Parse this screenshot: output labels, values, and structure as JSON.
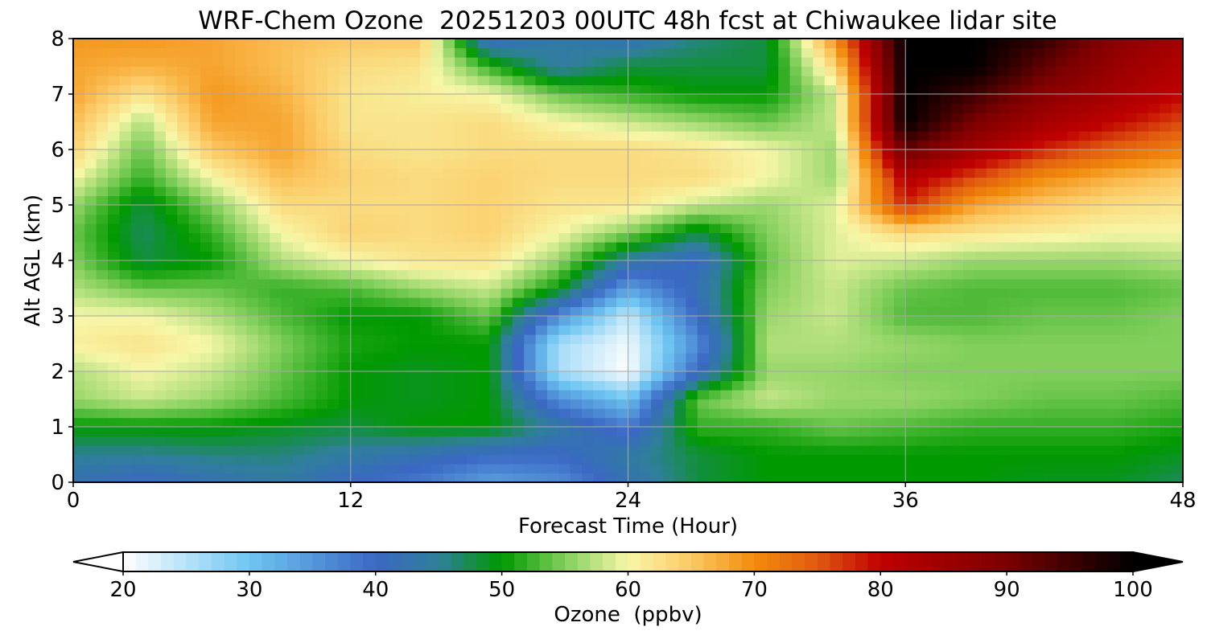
{
  "chart_data": {
    "type": "heatmap",
    "title": "WRF-Chem Ozone  20251203 00UTC 48h fcst at Chiwaukee lidar site",
    "xlabel": "Forecast Time (Hour)",
    "ylabel": "Alt AGL (km)",
    "xlim": [
      0,
      48
    ],
    "ylim": [
      0,
      8
    ],
    "x_ticks": [
      0,
      12,
      24,
      36,
      48
    ],
    "y_ticks": [
      0,
      1,
      2,
      3,
      4,
      5,
      6,
      7,
      8
    ],
    "grid": true,
    "x": [
      0,
      3,
      6,
      9,
      12,
      15,
      18,
      21,
      24,
      27,
      30,
      33,
      36,
      39,
      42,
      45,
      48
    ],
    "y": [
      0,
      0.5,
      1,
      1.5,
      2,
      2.5,
      3,
      3.5,
      4,
      4.5,
      5,
      5.5,
      6,
      6.5,
      7,
      7.5,
      8
    ],
    "z": [
      [
        42,
        40,
        42,
        44,
        40,
        38,
        34,
        36,
        42,
        48,
        50,
        50,
        50,
        50,
        49,
        49,
        47
      ],
      [
        45,
        45,
        46,
        46,
        44,
        42,
        40,
        40,
        44,
        48,
        50,
        50,
        50,
        50,
        50,
        50,
        49
      ],
      [
        50,
        50,
        50,
        49,
        48,
        50,
        50,
        44,
        38,
        52,
        52,
        54,
        53,
        52,
        52,
        52,
        51
      ],
      [
        56,
        58,
        56,
        53,
        50,
        49,
        50,
        36,
        30,
        54,
        58,
        56,
        56,
        55,
        54,
        54,
        53
      ],
      [
        57,
        60,
        58,
        54,
        50,
        49,
        50,
        26,
        20,
        40,
        56,
        56,
        55,
        55,
        55,
        55,
        55
      ],
      [
        61,
        62,
        60,
        55,
        51,
        50,
        50,
        26,
        21,
        36,
        57,
        57,
        56,
        55,
        55,
        55,
        55
      ],
      [
        60,
        60,
        57,
        53,
        50,
        50,
        54,
        36,
        24,
        40,
        56,
        58,
        53,
        53,
        54,
        54,
        55
      ],
      [
        57,
        54,
        54,
        52,
        53,
        56,
        58,
        50,
        34,
        42,
        55,
        58,
        54,
        53,
        53,
        53,
        54
      ],
      [
        55,
        48,
        50,
        57,
        60,
        62,
        62,
        56,
        44,
        40,
        54,
        59,
        58,
        56,
        56,
        56,
        57
      ],
      [
        54,
        47,
        52,
        60,
        64,
        63,
        64,
        60,
        55,
        48,
        55,
        59,
        63,
        62,
        61,
        60,
        60
      ],
      [
        56,
        48,
        55,
        63,
        63,
        63,
        64,
        62,
        62,
        58,
        56,
        59,
        78,
        68,
        65,
        63,
        62
      ],
      [
        60,
        52,
        60,
        66,
        64,
        63,
        64,
        63,
        63,
        63,
        60,
        56,
        82,
        76,
        70,
        67,
        65
      ],
      [
        64,
        54,
        65,
        68,
        63,
        62,
        63,
        63,
        63,
        62,
        60,
        56,
        92,
        84,
        78,
        74,
        71
      ],
      [
        66,
        57,
        68,
        68,
        62,
        62,
        63,
        60,
        58,
        56,
        54,
        58,
        100,
        90,
        84,
        80,
        76
      ],
      [
        68,
        62,
        69,
        67,
        62,
        61,
        60,
        54,
        52,
        50,
        50,
        58,
        100,
        95,
        88,
        84,
        80
      ],
      [
        68,
        67,
        68,
        66,
        63,
        62,
        52,
        44,
        48,
        48,
        48,
        64,
        100,
        100,
        92,
        86,
        82
      ],
      [
        69,
        69,
        68,
        66,
        65,
        65,
        40,
        44,
        42,
        46,
        48,
        70,
        100,
        100,
        96,
        88,
        84
      ]
    ],
    "colorbar": {
      "label": "Ozone  (ppbv)",
      "range": [
        20,
        100
      ],
      "ticks": [
        20,
        30,
        40,
        50,
        60,
        70,
        80,
        90,
        100
      ],
      "extend": "both",
      "color_stops": [
        {
          "v": 20,
          "c": "#ffffff"
        },
        {
          "v": 30,
          "c": "#6ec6f2"
        },
        {
          "v": 40,
          "c": "#3a68c4"
        },
        {
          "v": 45,
          "c": "#2f7f9a"
        },
        {
          "v": 50,
          "c": "#009900"
        },
        {
          "v": 55,
          "c": "#82cf5c"
        },
        {
          "v": 60,
          "c": "#f7f7a8"
        },
        {
          "v": 65,
          "c": "#fcc964"
        },
        {
          "v": 70,
          "c": "#f28c0c"
        },
        {
          "v": 75,
          "c": "#e05a10"
        },
        {
          "v": 80,
          "c": "#c00000"
        },
        {
          "v": 90,
          "c": "#7c0000"
        },
        {
          "v": 100,
          "c": "#000000"
        }
      ]
    }
  }
}
